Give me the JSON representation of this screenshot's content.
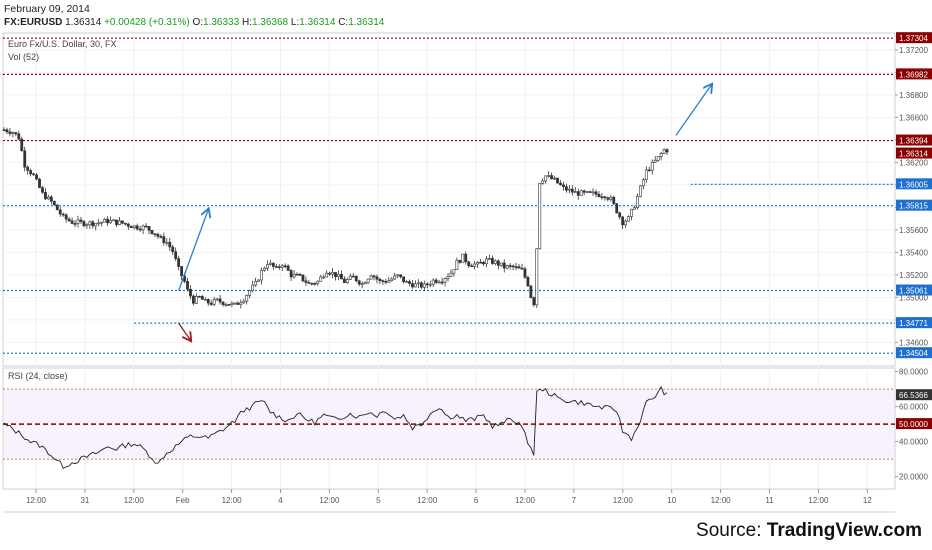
{
  "header": {
    "date": "February 09, 2014",
    "symbol": "FX:EURUSD",
    "last": "1.36314",
    "change": "+0.00428 (+0.31%)",
    "o_label": "O:",
    "open": "1.36333",
    "h_label": "H:",
    "high": "1.36368",
    "l_label": "L:",
    "low": "1.36314",
    "c_label": "C:",
    "close": "1.36314"
  },
  "panel": {
    "instrument": "Euro Fx/U.S. Dollar, 30, FX",
    "volume": "Vol (52)",
    "rsi_title": "RSI (24, close)"
  },
  "source": {
    "prefix": "Source: ",
    "brand": "TradingView.com"
  },
  "colors": {
    "resistance": "#8b0000",
    "support": "#1e6fd0",
    "arrow_up": "#2a7fd0",
    "arrow_down": "#9b1c1c",
    "candle_up": "#ffffff",
    "candle_down": "#333333",
    "rsi_line": "#222222",
    "rsi_band": "#f7f2fb"
  },
  "chart_data": [
    {
      "type": "candlestick",
      "symbol": "EURUSD",
      "timeframe": "30",
      "ylim": [
        1.3439,
        1.3735
      ],
      "y_ticks": [
        "1.37200",
        "1.37000",
        "1.36800",
        "1.36600",
        "1.36400",
        "1.36200",
        "1.36000",
        "1.35800",
        "1.35600",
        "1.35400",
        "1.35200",
        "1.35000",
        "1.34800",
        "1.34600"
      ],
      "x_ticks": [
        "12:00",
        "31",
        "12:00",
        "Feb",
        "12:00",
        "4",
        "12:00",
        "5",
        "12:00",
        "6",
        "12:00",
        "7",
        "12:00",
        "10",
        "12:00",
        "11",
        "12:00",
        "12"
      ],
      "resistance_levels": [
        "1.37304",
        "1.36982",
        "1.36394"
      ],
      "support_levels": [
        "1.36005",
        "1.35815",
        "1.35061",
        "1.34771",
        "1.34504"
      ],
      "last_price_tag": "1.36314",
      "path": [
        [
          0,
          1.3649
        ],
        [
          3,
          1.3647
        ],
        [
          5,
          1.3642
        ],
        [
          7,
          1.3618
        ],
        [
          10,
          1.3608
        ],
        [
          13,
          1.3592
        ],
        [
          16,
          1.3585
        ],
        [
          18,
          1.3578
        ],
        [
          20,
          1.3571
        ],
        [
          23,
          1.3567
        ],
        [
          27,
          1.3566
        ],
        [
          31,
          1.3566
        ],
        [
          35,
          1.3568
        ],
        [
          40,
          1.3566
        ],
        [
          44,
          1.3563
        ],
        [
          48,
          1.3562
        ],
        [
          51,
          1.3557
        ],
        [
          53,
          1.3552
        ],
        [
          55,
          1.3549
        ],
        [
          57,
          1.3541
        ],
        [
          59,
          1.3525
        ],
        [
          61,
          1.3514
        ],
        [
          62,
          1.3506
        ],
        [
          64,
          1.3497
        ],
        [
          66,
          1.35
        ],
        [
          68,
          1.3496
        ],
        [
          70,
          1.3495
        ],
        [
          72,
          1.3497
        ],
        [
          75,
          1.3495
        ],
        [
          78,
          1.3493
        ],
        [
          81,
          1.3499
        ],
        [
          83,
          1.3506
        ],
        [
          85,
          1.3512
        ],
        [
          87,
          1.3523
        ],
        [
          89,
          1.3531
        ],
        [
          92,
          1.3525
        ],
        [
          94,
          1.353
        ],
        [
          97,
          1.352
        ],
        [
          100,
          1.3518
        ],
        [
          103,
          1.3512
        ],
        [
          106,
          1.3514
        ],
        [
          109,
          1.3524
        ],
        [
          112,
          1.352
        ],
        [
          115,
          1.3514
        ],
        [
          118,
          1.3518
        ],
        [
          121,
          1.3512
        ],
        [
          124,
          1.3521
        ],
        [
          127,
          1.3514
        ],
        [
          130,
          1.3515
        ],
        [
          133,
          1.3519
        ],
        [
          136,
          1.3513
        ],
        [
          139,
          1.3511
        ],
        [
          142,
          1.351
        ],
        [
          145,
          1.3515
        ],
        [
          148,
          1.3516
        ],
        [
          151,
          1.3522
        ],
        [
          153,
          1.3531
        ],
        [
          155,
          1.3536
        ],
        [
          157,
          1.353
        ],
        [
          160,
          1.3529
        ],
        [
          163,
          1.3533
        ],
        [
          166,
          1.3531
        ],
        [
          169,
          1.3527
        ],
        [
          172,
          1.3527
        ],
        [
          175,
          1.3524
        ],
        [
          177,
          1.3512
        ],
        [
          178,
          1.3501
        ],
        [
          179,
          1.3495
        ],
        [
          180,
          1.3544
        ],
        [
          181,
          1.3603
        ],
        [
          183,
          1.3608
        ],
        [
          186,
          1.3604
        ],
        [
          189,
          1.3597
        ],
        [
          193,
          1.3593
        ],
        [
          196,
          1.3592
        ],
        [
          199,
          1.3592
        ],
        [
          203,
          1.3591
        ],
        [
          205,
          1.3587
        ],
        [
          207,
          1.3577
        ],
        [
          209,
          1.3567
        ],
        [
          211,
          1.357
        ],
        [
          213,
          1.3582
        ],
        [
          215,
          1.3597
        ],
        [
          217,
          1.3612
        ],
        [
          219,
          1.3618
        ],
        [
          221,
          1.3624
        ],
        [
          223,
          1.3631
        ],
        [
          224,
          1.3631
        ]
      ],
      "arrows": [
        {
          "direction": "up",
          "from": [
            59,
            1.3506
          ],
          "to": [
            69,
            1.3578
          ]
        },
        {
          "direction": "down",
          "from": [
            59,
            1.3477
          ],
          "to": [
            63,
            1.3462
          ]
        },
        {
          "direction": "up",
          "from": [
            227,
            1.3644
          ],
          "to": [
            239,
            1.3689
          ]
        }
      ]
    },
    {
      "type": "line",
      "title": "RSI (24, close)",
      "ylim": [
        13,
        82
      ],
      "y_ticks": [
        "80.0000",
        "60.0000",
        "40.0000",
        "20.0000"
      ],
      "reference_lines": [
        70,
        50,
        30
      ],
      "last_value_tag": "66.5366",
      "midline_tag": "50.0000",
      "path": [
        [
          0,
          50
        ],
        [
          3,
          47
        ],
        [
          6,
          44
        ],
        [
          9,
          40
        ],
        [
          12,
          38
        ],
        [
          15,
          34
        ],
        [
          18,
          29
        ],
        [
          20,
          26
        ],
        [
          23,
          28
        ],
        [
          26,
          30
        ],
        [
          29,
          32
        ],
        [
          32,
          34
        ],
        [
          35,
          37
        ],
        [
          38,
          36
        ],
        [
          41,
          38
        ],
        [
          44,
          39
        ],
        [
          47,
          36
        ],
        [
          50,
          31
        ],
        [
          52,
          27
        ],
        [
          54,
          32
        ],
        [
          57,
          36
        ],
        [
          60,
          40
        ],
        [
          63,
          43
        ],
        [
          66,
          43
        ],
        [
          69,
          42
        ],
        [
          72,
          45
        ],
        [
          75,
          48
        ],
        [
          78,
          52
        ],
        [
          81,
          58
        ],
        [
          84,
          60
        ],
        [
          86,
          63
        ],
        [
          88,
          62
        ],
        [
          90,
          57
        ],
        [
          93,
          54
        ],
        [
          96,
          52
        ],
        [
          99,
          56
        ],
        [
          102,
          53
        ],
        [
          105,
          51
        ],
        [
          108,
          55
        ],
        [
          111,
          53
        ],
        [
          114,
          54
        ],
        [
          117,
          56
        ],
        [
          120,
          54
        ],
        [
          123,
          57
        ],
        [
          126,
          55
        ],
        [
          129,
          58
        ],
        [
          132,
          53
        ],
        [
          135,
          55
        ],
        [
          138,
          48
        ],
        [
          141,
          50
        ],
        [
          144,
          56
        ],
        [
          147,
          60
        ],
        [
          150,
          54
        ],
        [
          153,
          55
        ],
        [
          156,
          52
        ],
        [
          159,
          53
        ],
        [
          162,
          55
        ],
        [
          165,
          49
        ],
        [
          168,
          50
        ],
        [
          171,
          53
        ],
        [
          174,
          51
        ],
        [
          177,
          40
        ],
        [
          179,
          33
        ],
        [
          180,
          68
        ],
        [
          182,
          70
        ],
        [
          185,
          67
        ],
        [
          188,
          64
        ],
        [
          192,
          63
        ],
        [
          196,
          62
        ],
        [
          200,
          60
        ],
        [
          204,
          59
        ],
        [
          207,
          58
        ],
        [
          209,
          46
        ],
        [
          212,
          42
        ],
        [
          214,
          48
        ],
        [
          217,
          62
        ],
        [
          220,
          66
        ],
        [
          222,
          70
        ],
        [
          224,
          66.5
        ]
      ]
    }
  ]
}
